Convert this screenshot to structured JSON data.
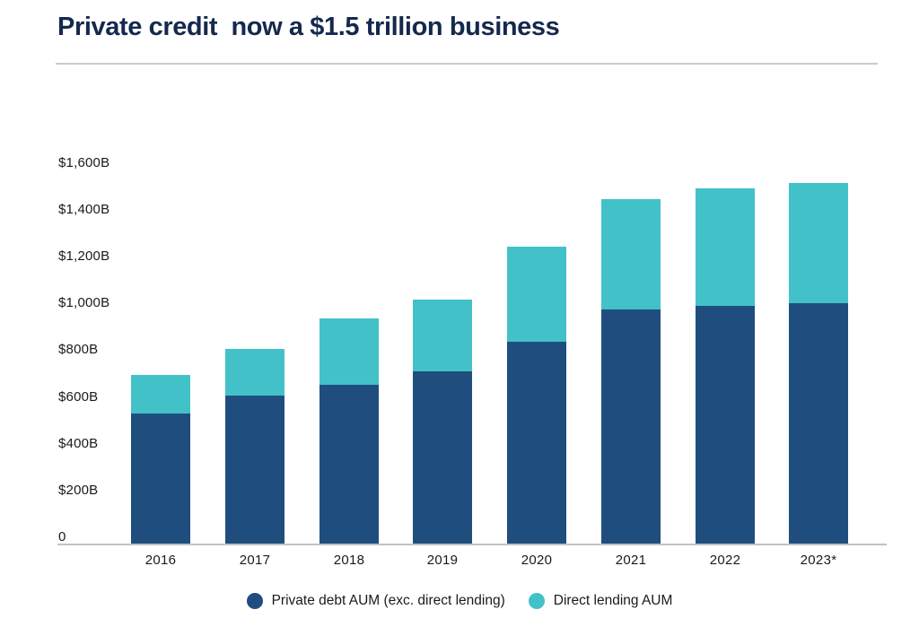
{
  "title": "Private credit  now a $1.5 trillion business",
  "colors": {
    "title_text": "#15294E",
    "axis_text": "#1a1a1a",
    "axis_line": "#c2c2c2",
    "divider": "#cbcbcb",
    "background": "#ffffff",
    "private_debt_bar": "#1F4E7E",
    "direct_lending_bar": "#43C1C8"
  },
  "chart_data": {
    "type": "bar",
    "stacked": true,
    "title": "Private credit  now a $1.5 trillion business",
    "categories": [
      "2016",
      "2017",
      "2018",
      "2019",
      "2020",
      "2021",
      "2022",
      "2023*"
    ],
    "series": [
      {
        "name": "Private debt AUM (exc. direct lending)",
        "color": "#1F4E7E",
        "values": [
          540,
          615,
          660,
          715,
          840,
          975,
          990,
          1000
        ]
      },
      {
        "name": "Direct lending AUM",
        "color": "#43C1C8",
        "values": [
          160,
          195,
          275,
          300,
          395,
          460,
          490,
          500
        ]
      }
    ],
    "stacked_totals": [
      700,
      810,
      935,
      1015,
      1235,
      1435,
      1480,
      1500
    ],
    "unit": "$B",
    "xlabel": "",
    "ylabel": "",
    "ylim": [
      0,
      1600
    ],
    "ytick_interval": 200,
    "ytick_labels": [
      "0",
      "$200B",
      "$400B",
      "$600B",
      "$800B",
      "$1,000B",
      "$1,200B",
      "$1,400B",
      "$1,600B"
    ],
    "grid": false,
    "legend_position": "bottom"
  }
}
